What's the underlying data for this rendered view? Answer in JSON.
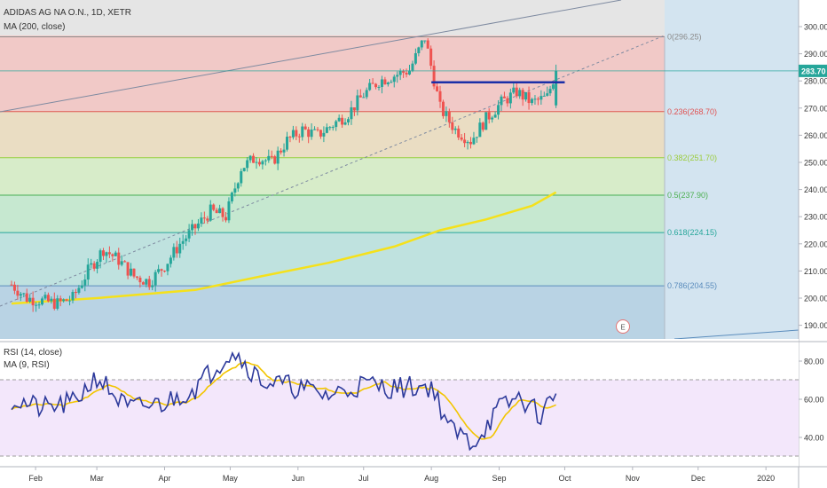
{
  "header": {
    "symbol_line": "ADIDAS AG NA O.N., 1D, XETR",
    "ma_label": "MA (200, close)"
  },
  "rsi_header": {
    "rsi_label": "RSI (14, close)",
    "rsi_ma_label": "MA (9, RSI)"
  },
  "price_axis": {
    "ticks": [
      "300.00",
      "290.00",
      "280.00",
      "270.00",
      "260.00",
      "250.00",
      "240.00",
      "230.00",
      "220.00",
      "210.00",
      "200.00",
      "190.00"
    ],
    "current_price": "283.70"
  },
  "rsi_axis": {
    "ticks": [
      "80.00",
      "60.00",
      "40.00"
    ]
  },
  "time_axis": {
    "ticks": [
      "Feb",
      "Mar",
      "Apr",
      "May",
      "Jun",
      "Jul",
      "Aug",
      "Sep",
      "Oct",
      "Nov",
      "Dec",
      "2020"
    ]
  },
  "fib_labels": [
    {
      "ratio": "0",
      "value": "296.25",
      "text": "0(296.25)"
    },
    {
      "ratio": "0.236",
      "value": "268.70",
      "text": "0.236(268.70)"
    },
    {
      "ratio": "0.382",
      "value": "251.70",
      "text": "0.382(251.70)"
    },
    {
      "ratio": "0.5",
      "value": "237.90",
      "text": "0.5(237.90)"
    },
    {
      "ratio": "0.618",
      "value": "224.15",
      "text": "0.618(224.15)"
    },
    {
      "ratio": "0.786",
      "value": "204.55",
      "text": "0.786(204.55)"
    }
  ],
  "event_marker": "E",
  "colors": {
    "up": "#26a69a",
    "down": "#ef5350",
    "ma200": "#f5e11b",
    "rsi": "#2d3a9b",
    "rsi_ma": "#f2c500",
    "resistance": "#1b2fa8",
    "fib0": "#8c8c8c",
    "fib236": "#e05252",
    "fib382": "#9ccc3c",
    "fib5": "#4caf50",
    "fib618": "#26a69a",
    "fib786": "#5b8dbd"
  },
  "chart_data": {
    "type": "candlestick",
    "title": "ADIDAS AG NA O.N., 1D, XETR",
    "x_range": [
      "2019-01-21",
      "2020-01-31"
    ],
    "y_range": [
      185,
      305
    ],
    "fibonacci": [
      {
        "level": 0,
        "price": 296.25
      },
      {
        "level": 0.236,
        "price": 268.7
      },
      {
        "level": 0.382,
        "price": 251.7
      },
      {
        "level": 0.5,
        "price": 237.9
      },
      {
        "level": 0.618,
        "price": 224.15
      },
      {
        "level": 0.786,
        "price": 204.55
      }
    ],
    "last_price": 283.7,
    "resistance_level": 279.5,
    "close_series_approx": [
      [
        "2019-01-21",
        205
      ],
      [
        "2019-01-28",
        200
      ],
      [
        "2019-02-04",
        199
      ],
      [
        "2019-02-11",
        198
      ],
      [
        "2019-02-18",
        200
      ],
      [
        "2019-02-25",
        210
      ],
      [
        "2019-03-04",
        218
      ],
      [
        "2019-03-11",
        214
      ],
      [
        "2019-03-18",
        208
      ],
      [
        "2019-03-25",
        206
      ],
      [
        "2019-04-01",
        212
      ],
      [
        "2019-04-08",
        220
      ],
      [
        "2019-04-15",
        226
      ],
      [
        "2019-04-22",
        232
      ],
      [
        "2019-04-29",
        230
      ],
      [
        "2019-05-06",
        248
      ],
      [
        "2019-05-13",
        252
      ],
      [
        "2019-05-20",
        250
      ],
      [
        "2019-05-27",
        258
      ],
      [
        "2019-06-03",
        262
      ],
      [
        "2019-06-10",
        260
      ],
      [
        "2019-06-17",
        264
      ],
      [
        "2019-06-24",
        268
      ],
      [
        "2019-07-01",
        275
      ],
      [
        "2019-07-08",
        280
      ],
      [
        "2019-07-15",
        282
      ],
      [
        "2019-07-22",
        284
      ],
      [
        "2019-07-29",
        296
      ],
      [
        "2019-08-05",
        270
      ],
      [
        "2019-08-12",
        262
      ],
      [
        "2019-08-19",
        258
      ],
      [
        "2019-08-26",
        266
      ],
      [
        "2019-09-02",
        272
      ],
      [
        "2019-09-09",
        276
      ],
      [
        "2019-09-16",
        272
      ],
      [
        "2019-09-23",
        274
      ],
      [
        "2019-09-27",
        283.7
      ]
    ],
    "ma200_approx": [
      [
        "2019-01-21",
        198
      ],
      [
        "2019-03-01",
        200
      ],
      [
        "2019-04-15",
        203
      ],
      [
        "2019-05-15",
        208
      ],
      [
        "2019-06-15",
        213
      ],
      [
        "2019-07-15",
        219
      ],
      [
        "2019-08-05",
        225
      ],
      [
        "2019-08-26",
        229
      ],
      [
        "2019-09-16",
        234
      ],
      [
        "2019-09-27",
        239
      ]
    ],
    "rsi": {
      "period": 14,
      "ma_period": 9,
      "y_range": [
        25,
        90
      ],
      "levels": [
        70,
        30
      ],
      "last_value": 63,
      "rsi_approx": [
        [
          "2019-01-21",
          60
        ],
        [
          "2019-02-04",
          55
        ],
        [
          "2019-02-18",
          58
        ],
        [
          "2019-03-01",
          72
        ],
        [
          "2019-03-15",
          55
        ],
        [
          "2019-04-01",
          58
        ],
        [
          "2019-04-15",
          66
        ],
        [
          "2019-05-02",
          86
        ],
        [
          "2019-05-15",
          70
        ],
        [
          "2019-06-01",
          66
        ],
        [
          "2019-06-15",
          62
        ],
        [
          "2019-07-01",
          68
        ],
        [
          "2019-07-15",
          66
        ],
        [
          "2019-08-01",
          67
        ],
        [
          "2019-08-10",
          44
        ],
        [
          "2019-08-20",
          37
        ],
        [
          "2019-09-01",
          55
        ],
        [
          "2019-09-10",
          61
        ],
        [
          "2019-09-20",
          52
        ],
        [
          "2019-09-27",
          63
        ]
      ]
    }
  }
}
